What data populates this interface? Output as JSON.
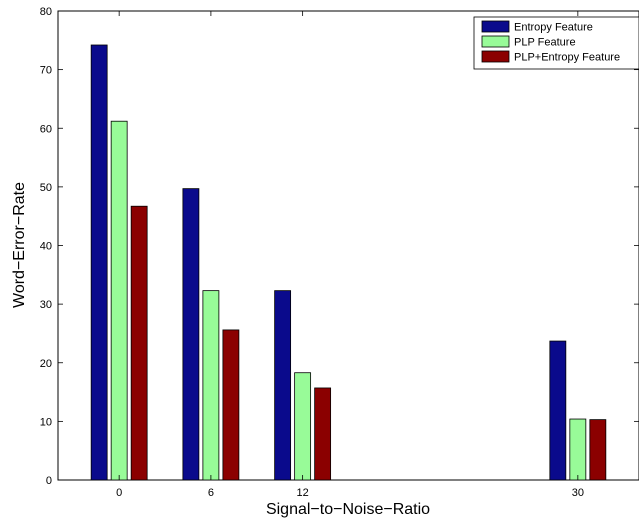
{
  "chart_data": {
    "type": "bar",
    "title": "",
    "xlabel": "Signal−to−Noise−Ratio",
    "ylabel": "Word−Error−Rate",
    "x": [
      0,
      6,
      12,
      30
    ],
    "categories": [
      "0",
      "6",
      "12",
      "30"
    ],
    "xlim": [
      -4,
      34
    ],
    "ylim": [
      0,
      80
    ],
    "yticks": [
      0,
      10,
      20,
      30,
      40,
      50,
      60,
      70,
      80
    ],
    "grid": false,
    "legend_position": "top-right",
    "series": [
      {
        "name": "Entropy Feature",
        "color": "#0a0a8c",
        "values": [
          74.2,
          49.7,
          32.3,
          23.7
        ]
      },
      {
        "name": "PLP Feature",
        "color": "#98fb98",
        "values": [
          61.2,
          32.3,
          18.3,
          10.4
        ]
      },
      {
        "name": "PLP+Entropy Feature",
        "color": "#8b0000",
        "values": [
          46.7,
          25.6,
          15.7,
          10.3
        ]
      }
    ]
  }
}
